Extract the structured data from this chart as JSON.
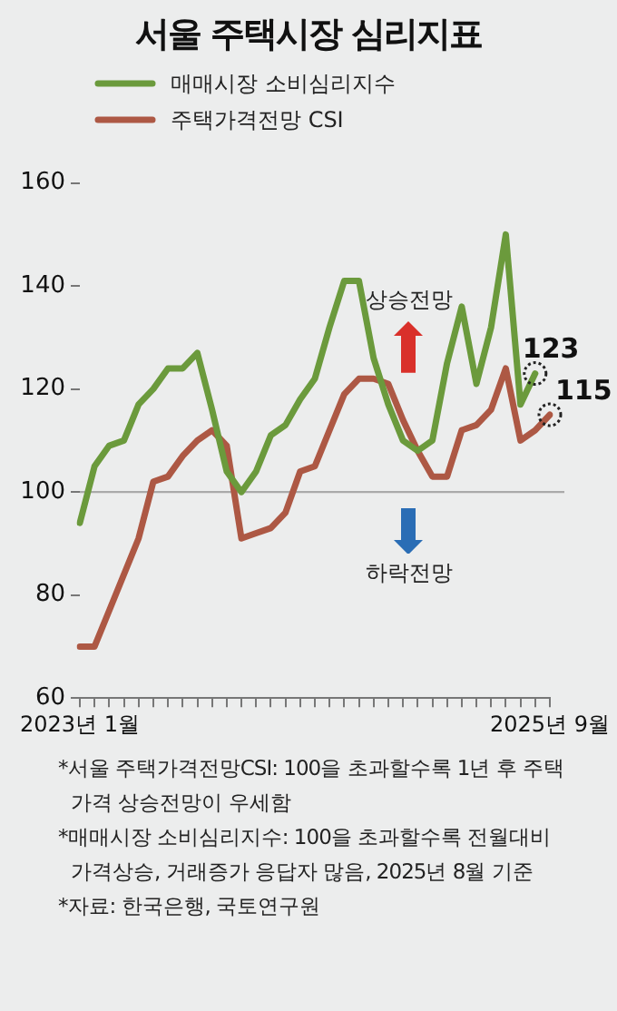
{
  "chart_data": {
    "type": "line",
    "title": "서울 주택시장 심리지표",
    "categories": [
      "2023년 1월",
      null,
      null,
      null,
      null,
      null,
      null,
      null,
      null,
      null,
      null,
      null,
      null,
      null,
      null,
      null,
      null,
      null,
      null,
      null,
      null,
      null,
      null,
      null,
      null,
      null,
      null,
      null,
      null,
      null,
      null,
      null,
      "2025년 9월"
    ],
    "series": [
      {
        "name": "매매시장 소비심리지수",
        "color": "#6b9a3c",
        "values": [
          94,
          105,
          109,
          110,
          117,
          120,
          124,
          124,
          127,
          116,
          104,
          100,
          104,
          111,
          113,
          118,
          122,
          132,
          141,
          141,
          126,
          117,
          110,
          108,
          110,
          125,
          136,
          121,
          132,
          150,
          117,
          123,
          null
        ],
        "value_labels": [
          null,
          null,
          null,
          null,
          null,
          null,
          null,
          null,
          null,
          null,
          null,
          null,
          null,
          null,
          null,
          null,
          null,
          null,
          null,
          null,
          null,
          null,
          null,
          null,
          null,
          null,
          null,
          null,
          null,
          null,
          null,
          "123",
          null
        ]
      },
      {
        "name": "주택가격전망 CSI",
        "color": "#ad5844",
        "values": [
          70,
          70,
          77,
          84,
          91,
          102,
          103,
          107,
          110,
          112,
          109,
          91,
          92,
          93,
          96,
          104,
          105,
          112,
          119,
          122,
          122,
          121,
          114,
          108,
          103,
          103,
          112,
          113,
          116,
          124,
          110,
          112,
          115
        ],
        "value_labels": [
          null,
          null,
          null,
          null,
          null,
          null,
          null,
          null,
          null,
          null,
          null,
          null,
          null,
          null,
          null,
          null,
          null,
          null,
          null,
          null,
          null,
          null,
          null,
          null,
          null,
          null,
          null,
          null,
          null,
          null,
          null,
          null,
          "115"
        ]
      }
    ],
    "ylim": [
      60,
      160
    ],
    "yticks": [
      60,
      80,
      100,
      120,
      140,
      160
    ],
    "grid": false,
    "legend": "top left",
    "marker": "none",
    "line_style": "solid",
    "ref_lines": [
      {
        "axis": "y",
        "value": 100,
        "color": "#aaaaaa"
      }
    ],
    "annotations": [
      "상승전망",
      "하락전망",
      "*서울 주택가격전망CSI: 100을 초과할수록 1년 후 주택가격 상승전망이 우세함",
      "*매매시장 소비심리지수: 100을 초과할수록 전월대비 가격상승, 거래증가 응답자 많음, 2025년 8월 기준",
      "*자료: 한국은행, 국토연구원"
    ]
  }
}
